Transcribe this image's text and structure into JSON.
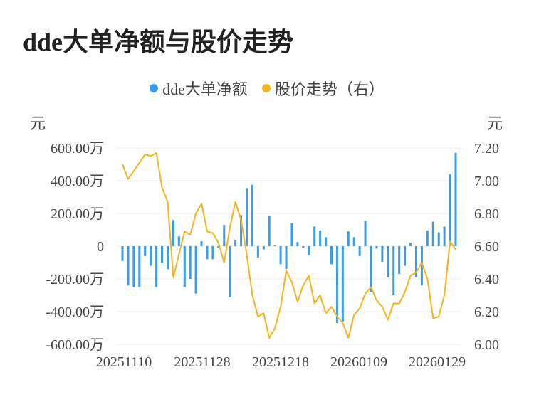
{
  "chart_data": {
    "type": "bar+line",
    "title": "dde大单净额与股价走势",
    "legend": [
      {
        "name": "dde大单净额",
        "color": "#3a9be8"
      },
      {
        "name": "股价走势（右）",
        "color": "#f5b31f"
      }
    ],
    "y_left": {
      "unit": "元",
      "ylim": [
        -600,
        600
      ],
      "ticks": [
        "600.00万",
        "400.00万",
        "200.00万",
        "0",
        "-200.00万",
        "-400.00万",
        "-600.00万"
      ],
      "tick_values": [
        600,
        400,
        200,
        0,
        -200,
        -400,
        -600
      ]
    },
    "y_right": {
      "unit": "元",
      "ylim": [
        6.0,
        7.2
      ],
      "ticks": [
        "7.20",
        "7.00",
        "6.80",
        "6.60",
        "6.40",
        "6.20",
        "6.00"
      ],
      "tick_values": [
        7.2,
        7.0,
        6.8,
        6.6,
        6.4,
        6.2,
        6.0
      ]
    },
    "x_tick_labels": [
      {
        "index": 0,
        "label": "20251110"
      },
      {
        "index": 14,
        "label": "20251128"
      },
      {
        "index": 28,
        "label": "20251218"
      },
      {
        "index": 42,
        "label": "20260109"
      },
      {
        "index": 56,
        "label": "20260129"
      }
    ],
    "series": [
      {
        "name": "dde大单净额",
        "type": "bar",
        "unit": "万元",
        "values": [
          -90,
          -240,
          -250,
          -250,
          -60,
          -120,
          -250,
          -100,
          -140,
          160,
          60,
          -250,
          -200,
          -290,
          30,
          -80,
          -80,
          -10,
          130,
          -310,
          40,
          190,
          355,
          375,
          -70,
          -20,
          185,
          5,
          -110,
          -140,
          140,
          25,
          -10,
          -55,
          120,
          95,
          55,
          -110,
          -470,
          -460,
          90,
          55,
          -60,
          155,
          -280,
          -15,
          -95,
          -190,
          -300,
          -170,
          -120,
          20,
          -190,
          -240,
          95,
          150,
          85,
          120,
          440,
          570
        ]
      },
      {
        "name": "股价走势（右）",
        "type": "line",
        "unit": "元",
        "values": [
          7.1,
          7.01,
          7.06,
          7.11,
          7.16,
          7.15,
          7.17,
          6.96,
          6.87,
          6.41,
          6.55,
          6.69,
          6.67,
          6.8,
          6.86,
          6.69,
          6.68,
          6.62,
          6.5,
          6.71,
          6.87,
          6.76,
          6.55,
          6.3,
          6.17,
          6.19,
          6.04,
          6.1,
          6.23,
          6.45,
          6.38,
          6.26,
          6.36,
          6.42,
          6.25,
          6.3,
          6.19,
          6.23,
          6.17,
          6.13,
          6.04,
          6.18,
          6.22,
          6.31,
          6.35,
          6.27,
          6.23,
          6.15,
          6.25,
          6.25,
          6.32,
          6.42,
          6.44,
          6.5,
          6.4,
          6.16,
          6.17,
          6.3,
          6.63,
          6.58
        ]
      }
    ]
  }
}
